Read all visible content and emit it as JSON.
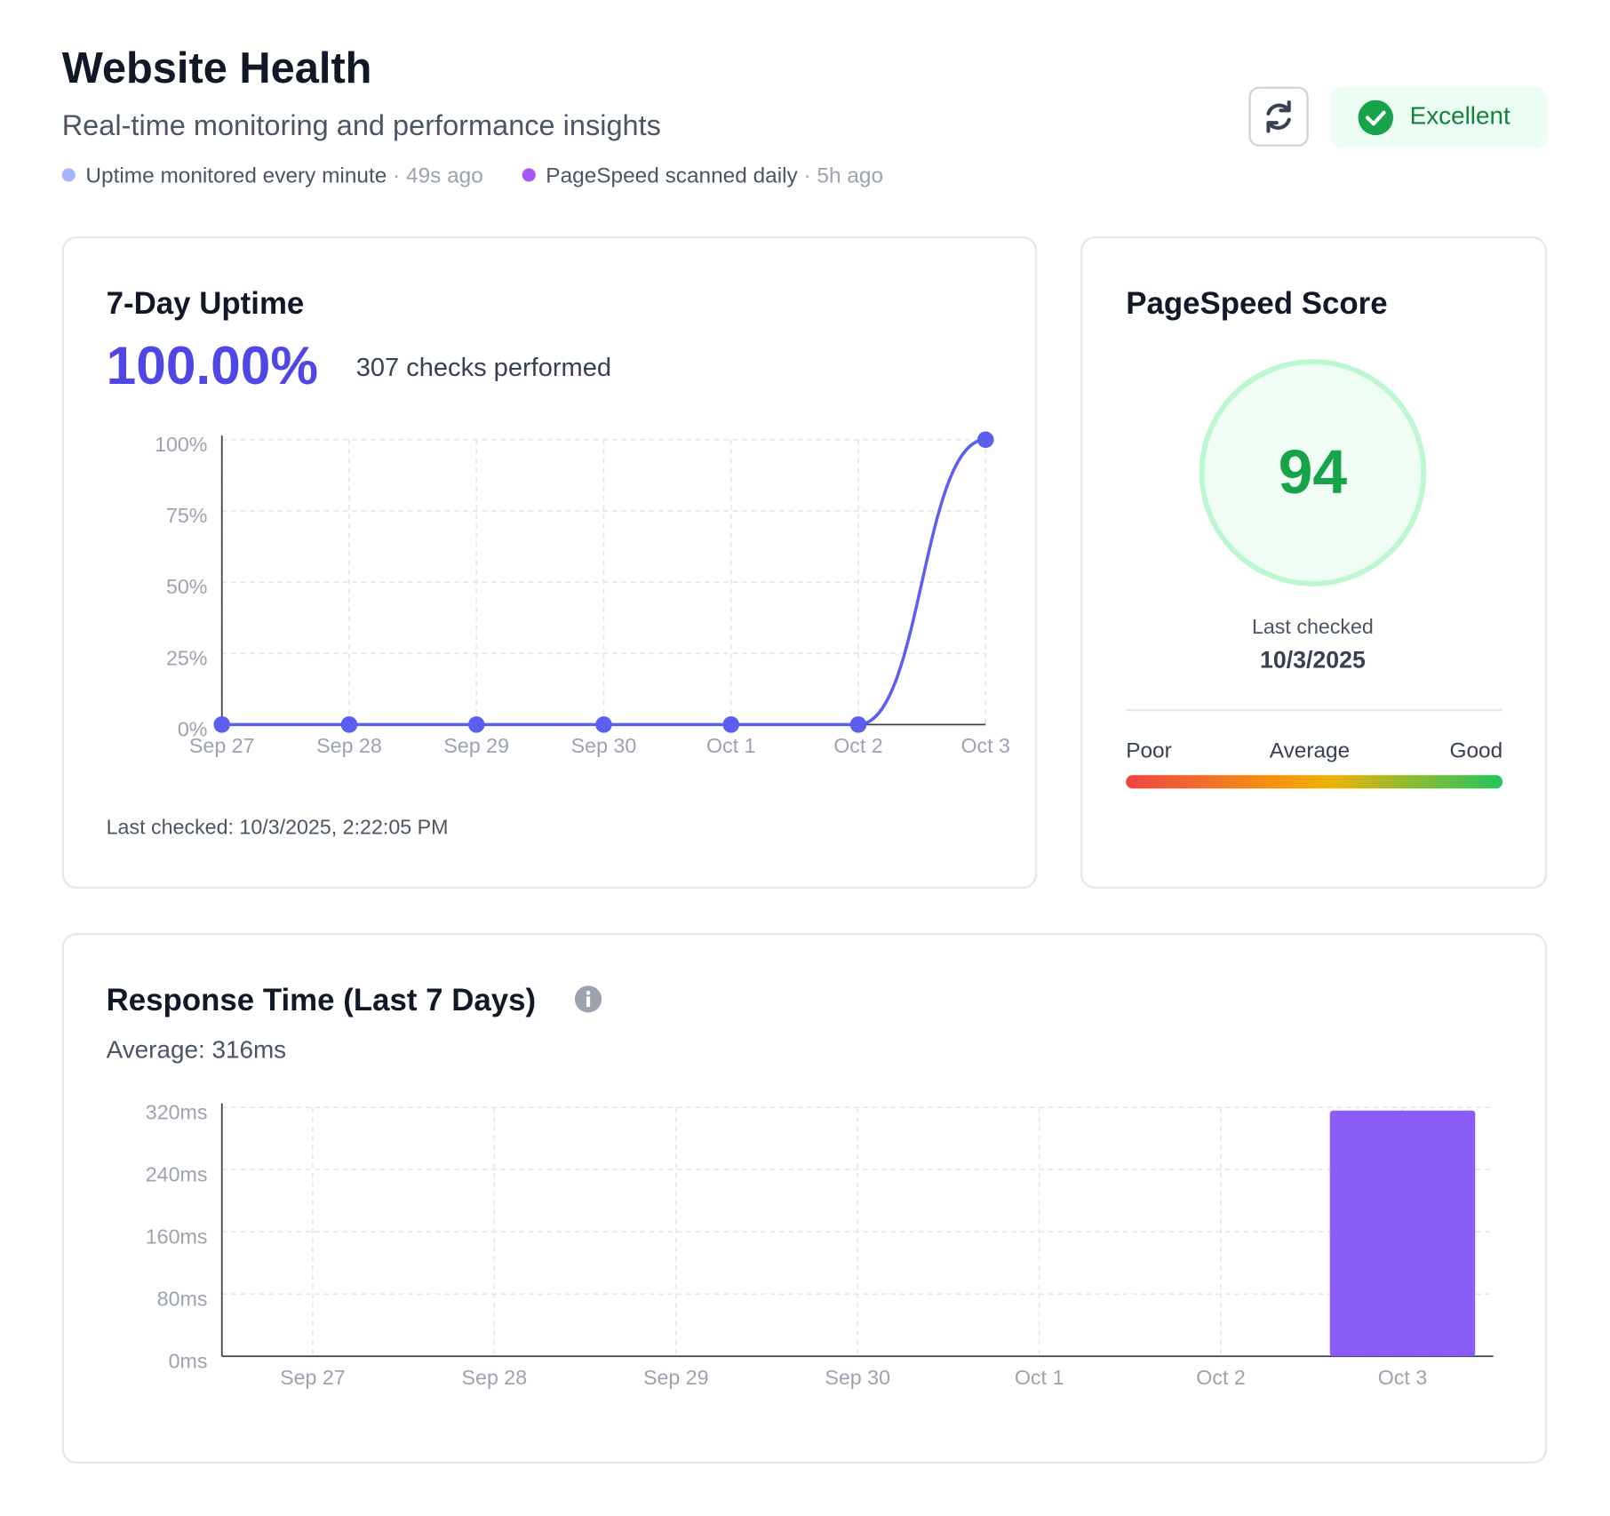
{
  "header": {
    "title": "Website Health",
    "subtitle": "Real-time monitoring and performance insights",
    "meta": [
      {
        "label": "Uptime monitored every minute",
        "age": "· 49s ago"
      },
      {
        "label": "PageSpeed scanned daily",
        "age": "· 5h ago"
      }
    ],
    "status": "Excellent"
  },
  "uptime_card": {
    "title": "7-Day Uptime",
    "uptime": "100.00%",
    "checks": "307 checks performed",
    "last_checked": "Last checked: 10/3/2025, 2:22:05 PM"
  },
  "pagespeed_card": {
    "title": "PageSpeed Score",
    "score": 94,
    "last_checked_label": "Last checked",
    "last_checked_date": "10/3/2025",
    "scale": [
      "Poor",
      "Average",
      "Good"
    ]
  },
  "response_card": {
    "title": "Response Time (Last 7 Days)",
    "average": "Average: 316ms"
  },
  "chart_data": [
    {
      "type": "line",
      "categories": [
        "Sep 27",
        "Sep 28",
        "Sep 29",
        "Sep 30",
        "Oct 1",
        "Oct 2",
        "Oct 3"
      ],
      "values": [
        0,
        0,
        0,
        0,
        0,
        0,
        100
      ],
      "color": "#5b5ff0",
      "ylim": [
        0,
        100
      ],
      "yticks": [
        {
          "value": 0,
          "label": "0%"
        },
        {
          "value": 25,
          "label": "25%"
        },
        {
          "value": 50,
          "label": "50%"
        },
        {
          "value": 75,
          "label": "75%"
        },
        {
          "value": 100,
          "label": "100%"
        }
      ],
      "grid": true
    },
    {
      "type": "bar",
      "categories": [
        "Sep 27",
        "Sep 28",
        "Sep 29",
        "Sep 30",
        "Oct 1",
        "Oct 2",
        "Oct 3"
      ],
      "values": [
        0,
        0,
        0,
        0,
        0,
        0,
        316
      ],
      "color": "#8b5cf6",
      "ylim": [
        0,
        320
      ],
      "yticks": [
        {
          "value": 0,
          "label": "0ms"
        },
        {
          "value": 80,
          "label": "80ms"
        },
        {
          "value": 160,
          "label": "160ms"
        },
        {
          "value": 240,
          "label": "240ms"
        },
        {
          "value": 320,
          "label": "320ms"
        }
      ],
      "grid": true
    }
  ]
}
